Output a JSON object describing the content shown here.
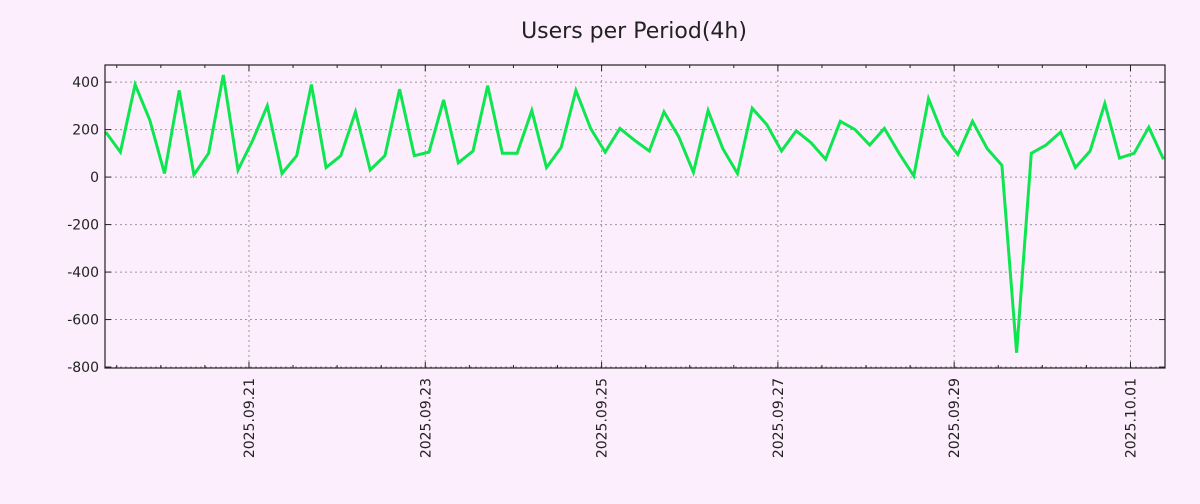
{
  "chart_data": {
    "type": "line",
    "title": "Users per Period(4h)",
    "xlabel": "",
    "ylabel": "",
    "x_unit": "hours since 2025.09.19 00:00",
    "xlim": [
      8.8,
      297.4
    ],
    "ylim": [
      -804,
      472
    ],
    "grid": true,
    "yticks": [
      400,
      200,
      0,
      -200,
      -400,
      -600,
      -800
    ],
    "ytick_labels": [
      "400",
      "200",
      "0",
      "-200",
      "-400",
      "-600",
      "-800"
    ],
    "xticks": [
      48,
      96,
      144,
      192,
      240,
      288
    ],
    "xtick_labels": [
      "2025.09.21",
      "2025.09.23",
      "2025.09.25",
      "2025.09.27",
      "2025.09.29",
      "2025.10.01"
    ],
    "line_color": "#0ee650",
    "series": [
      {
        "name": "Users",
        "x_start": 9,
        "x_step": 4,
        "values": [
          190,
          105,
          390,
          240,
          15,
          365,
          10,
          100,
          430,
          30,
          155,
          300,
          15,
          90,
          390,
          40,
          90,
          275,
          30,
          90,
          370,
          90,
          105,
          325,
          60,
          110,
          385,
          100,
          100,
          280,
          40,
          125,
          365,
          205,
          105,
          205,
          155,
          110,
          275,
          170,
          20,
          280,
          120,
          15,
          290,
          220,
          110,
          195,
          145,
          75,
          235,
          200,
          135,
          205,
          100,
          5,
          330,
          175,
          95,
          235,
          120,
          50,
          -740,
          100,
          135,
          190,
          40,
          110,
          310,
          80,
          100,
          210,
          75
        ]
      }
    ]
  }
}
